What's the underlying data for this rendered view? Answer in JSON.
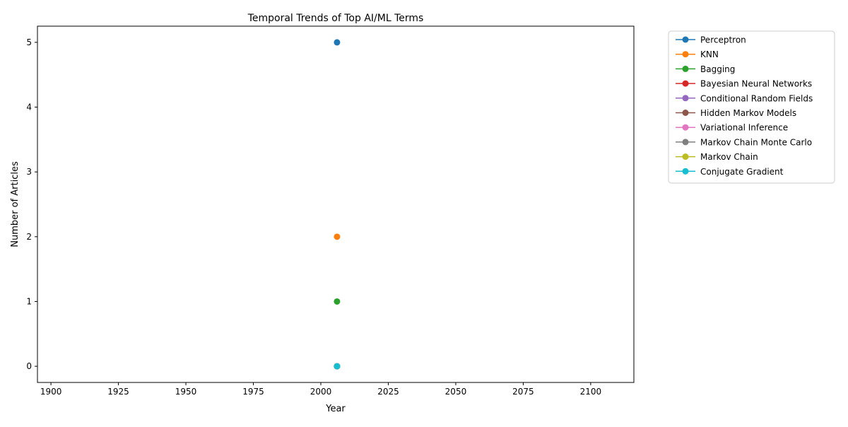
{
  "chart_data": {
    "type": "line",
    "title": "Temporal Trends of Top AI/ML Terms",
    "xlabel": "Year",
    "ylabel": "Number of Articles",
    "xlim": [
      1895,
      2116
    ],
    "ylim": [
      -0.25,
      5.25
    ],
    "x_ticks": [
      1900,
      1925,
      1950,
      1975,
      2000,
      2025,
      2050,
      2075,
      2100
    ],
    "y_ticks": [
      0,
      1,
      2,
      3,
      4,
      5
    ],
    "grid": false,
    "legend_position": "outside-right",
    "x": [
      2006
    ],
    "series": [
      {
        "name": "Perceptron",
        "color": "#1f77b4",
        "values": [
          5
        ]
      },
      {
        "name": "KNN",
        "color": "#ff7f0e",
        "values": [
          2
        ]
      },
      {
        "name": "Bagging",
        "color": "#2ca02c",
        "values": [
          1
        ]
      },
      {
        "name": "Bayesian Neural Networks",
        "color": "#d62728",
        "values": [
          0
        ]
      },
      {
        "name": "Conditional Random Fields",
        "color": "#9467bd",
        "values": [
          0
        ]
      },
      {
        "name": "Hidden Markov Models",
        "color": "#8c564b",
        "values": [
          0
        ]
      },
      {
        "name": "Variational Inference",
        "color": "#e377c2",
        "values": [
          0
        ]
      },
      {
        "name": "Markov Chain Monte Carlo",
        "color": "#7f7f7f",
        "values": [
          0
        ]
      },
      {
        "name": "Markov Chain",
        "color": "#bcbd22",
        "values": [
          0
        ]
      },
      {
        "name": "Conjugate Gradient",
        "color": "#17becf",
        "values": [
          0
        ]
      }
    ]
  }
}
